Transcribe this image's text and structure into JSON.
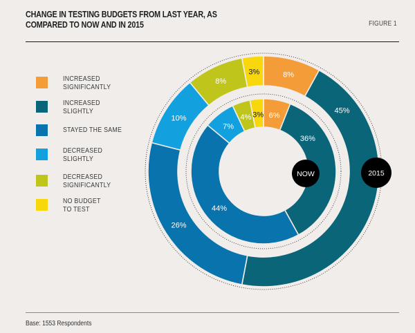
{
  "header": {
    "title_lines": [
      "CHANGE IN TESTING BUDGETS FROM LAST YEAR, AS",
      "COMPARED TO NOW AND IN 2015"
    ],
    "figure_label": "FIGURE 1"
  },
  "footer": {
    "base_note": "Base: 1553 Respondents"
  },
  "chart_data": {
    "type": "pie",
    "subtype": "nested-donut",
    "title": "CHANGE IN TESTING BUDGETS FROM LAST YEAR, AS COMPARED TO NOW AND IN 2015",
    "legend_position": "left",
    "categories": [
      "INCREASED SIGNIFICANTLY",
      "INCREASED SLIGHTLY",
      "STAYED THE SAME",
      "DECREASED SLIGHTLY",
      "DECREASED SIGNIFICANTLY",
      "NO BUDGET TO TEST"
    ],
    "legend": [
      {
        "lines": [
          "INCREASED",
          "SIGNIFICANTLY"
        ],
        "color": "#f39c38"
      },
      {
        "lines": [
          "INCREASED",
          "SLIGHTLY"
        ],
        "color": "#0b6579"
      },
      {
        "lines": [
          "STAYED THE SAME"
        ],
        "color": "#0873ac"
      },
      {
        "lines": [
          "DECREASED",
          "SLIGHTLY"
        ],
        "color": "#12a1de"
      },
      {
        "lines": [
          "DECREASED",
          "SIGNIFICANTLY"
        ],
        "color": "#bfc51b"
      },
      {
        "lines": [
          "NO BUDGET",
          "TO TEST"
        ],
        "color": "#f9d70d"
      }
    ],
    "series": [
      {
        "name": "NOW",
        "ring": "inner",
        "values": [
          6,
          36,
          44,
          7,
          4,
          3
        ],
        "labels": [
          "6%",
          "36%",
          "44%",
          "7%",
          "4%",
          "3%"
        ]
      },
      {
        "name": "2015",
        "ring": "outer",
        "values": [
          8,
          45,
          26,
          10,
          8,
          3
        ],
        "labels": [
          "8%",
          "45%",
          "26%",
          "10%",
          "8%",
          "3%"
        ]
      }
    ],
    "label_colors": [
      "#ffffff",
      "#ffffff",
      "#ffffff",
      "#ffffff",
      "#ffffff",
      "#1a1a1a"
    ],
    "badge_color": "#000000"
  }
}
